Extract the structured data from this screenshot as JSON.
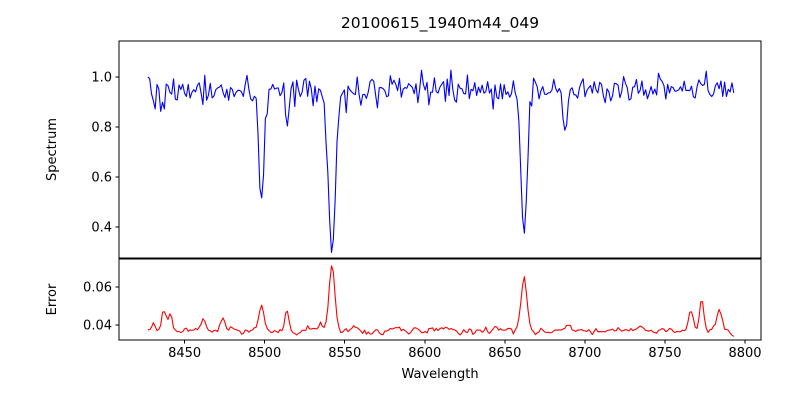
{
  "chart_data": {
    "type": "line",
    "title": "20100615_1940m44_049",
    "xlabel": "Wavelength",
    "xlim": [
      8409,
      8810
    ],
    "x_range": [
      8427,
      8793
    ],
    "xticks": [
      8450,
      8500,
      8550,
      8600,
      8650,
      8700,
      8750,
      8800
    ],
    "grid": false,
    "legend": "none",
    "subplots": [
      {
        "ylabel": "Spectrum",
        "color": "#0000ff",
        "ylim": [
          0.276,
          1.144
        ],
        "yticks": [
          1.0,
          0.8,
          0.6,
          0.4
        ],
        "ytick_labels": [
          "1.0",
          "0.8",
          "0.6",
          "0.4"
        ],
        "baseline": 0.95,
        "noise_sigma": 0.032,
        "absorption_lines": [
          {
            "center": 8436,
            "min": 0.84,
            "sigma": 1.2
          },
          {
            "center": 8498,
            "min": 0.51,
            "sigma": 1.7
          },
          {
            "center": 8514,
            "min": 0.82,
            "sigma": 1.2
          },
          {
            "center": 8542,
            "min": 0.3,
            "sigma": 2.2
          },
          {
            "center": 8662,
            "min": 0.37,
            "sigma": 1.9
          },
          {
            "center": 8688,
            "min": 0.78,
            "sigma": 1.3
          }
        ]
      },
      {
        "ylabel": "Error",
        "color": "#ff0000",
        "ylim": [
          0.032,
          0.0747
        ],
        "yticks": [
          0.06,
          0.04
        ],
        "ytick_labels": [
          "0.06",
          "0.04"
        ],
        "baseline": 0.037,
        "noise_sigma": 0.0012,
        "peaks": [
          {
            "center": 8430,
            "peak": 0.042,
            "sigma": 1.2
          },
          {
            "center": 8437,
            "peak": 0.047,
            "sigma": 1.4
          },
          {
            "center": 8441,
            "peak": 0.046,
            "sigma": 1.2
          },
          {
            "center": 8462,
            "peak": 0.043,
            "sigma": 1.5
          },
          {
            "center": 8474,
            "peak": 0.044,
            "sigma": 1.5
          },
          {
            "center": 8498,
            "peak": 0.05,
            "sigma": 1.6
          },
          {
            "center": 8514,
            "peak": 0.048,
            "sigma": 1.3
          },
          {
            "center": 8542,
            "peak": 0.072,
            "sigma": 1.8
          },
          {
            "center": 8662,
            "peak": 0.064,
            "sigma": 1.8
          },
          {
            "center": 8690,
            "peak": 0.04,
            "sigma": 1.2
          },
          {
            "center": 8766,
            "peak": 0.047,
            "sigma": 1.5
          },
          {
            "center": 8773,
            "peak": 0.053,
            "sigma": 1.3
          },
          {
            "center": 8784,
            "peak": 0.047,
            "sigma": 1.6
          }
        ]
      }
    ]
  }
}
